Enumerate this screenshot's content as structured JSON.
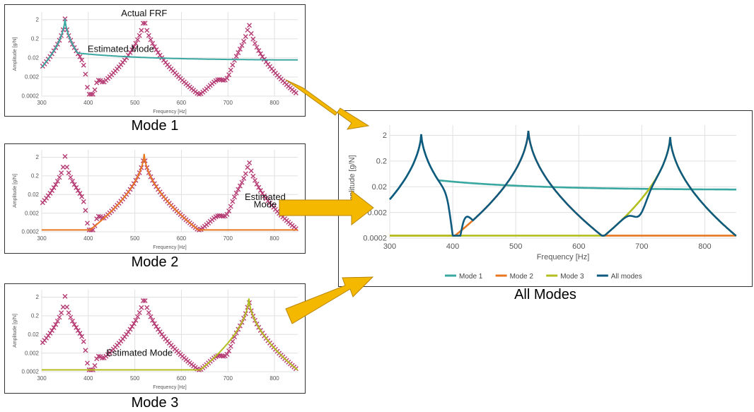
{
  "colors": {
    "mode1": "#3aa8a0",
    "mode2": "#e87722",
    "mode3": "#b3bf1e",
    "all": "#0f5a7f",
    "frf": "#b53a73",
    "arrow": "#f5b800",
    "grid": "#e0e0e0"
  },
  "captions": {
    "mode1": "Mode 1",
    "mode2": "Mode 2",
    "mode3": "Mode 3",
    "all": "All Modes"
  },
  "chart_data": [
    {
      "id": "mode1",
      "type": "line",
      "scale_y": "log",
      "xlabel": "Frequency [Hz]",
      "ylabel": "Amplitude [g/N]",
      "xlim": [
        300,
        850
      ],
      "ylim": [
        0.0002,
        5
      ],
      "x_ticks": [
        "300",
        "400",
        "500",
        "600",
        "700",
        "800"
      ],
      "y_ticks": [
        "0.0002",
        "0.002",
        "0.02",
        "0.2",
        "2"
      ],
      "series": [
        {
          "kind": "markers",
          "color_key": "frf",
          "peaks": [
            [
              350,
              2.2
            ],
            [
              520,
              3.0
            ],
            [
              745,
              1.7
            ]
          ]
        },
        {
          "kind": "line",
          "color_key": "mode1",
          "peak": [
            350,
            2.2
          ],
          "tail": 0.015
        }
      ],
      "annotations": [
        {
          "text": "Actual FRF",
          "at": [
            520,
            3.0
          ]
        },
        {
          "text": "Estimated Mode",
          "at": [
            470,
            0.04
          ]
        }
      ]
    },
    {
      "id": "mode2",
      "type": "line",
      "scale_y": "log",
      "xlabel": "Frequency [Hz]",
      "ylabel": "Amplitude [g/N]",
      "xlim": [
        300,
        850
      ],
      "ylim": [
        0.0002,
        5
      ],
      "x_ticks": [
        "300",
        "400",
        "500",
        "600",
        "700",
        "800"
      ],
      "y_ticks": [
        "0.0002",
        "0.002",
        "0.02",
        "0.2",
        "2"
      ],
      "series": [
        {
          "kind": "markers",
          "color_key": "frf",
          "peaks": [
            [
              350,
              2.2
            ],
            [
              520,
              3.0
            ],
            [
              745,
              1.7
            ]
          ]
        },
        {
          "kind": "line",
          "color_key": "mode2",
          "peak": [
            520,
            3.0
          ]
        }
      ],
      "annotations": [
        {
          "text": "Estimated",
          "at": [
            780,
            0.01
          ]
        },
        {
          "text": "Mode",
          "at": [
            780,
            0.004
          ]
        }
      ]
    },
    {
      "id": "mode3",
      "type": "line",
      "scale_y": "log",
      "xlabel": "Frequency [Hz]",
      "ylabel": "Amplitude [g/N]",
      "xlim": [
        300,
        850
      ],
      "ylim": [
        0.0002,
        5
      ],
      "x_ticks": [
        "300",
        "400",
        "500",
        "600",
        "700",
        "800"
      ],
      "y_ticks": [
        "0.0002",
        "0.002",
        "0.02",
        "0.2",
        "2"
      ],
      "series": [
        {
          "kind": "markers",
          "color_key": "frf",
          "peaks": [
            [
              350,
              2.2
            ],
            [
              520,
              3.0
            ],
            [
              745,
              1.7
            ]
          ]
        },
        {
          "kind": "line",
          "color_key": "mode3",
          "peak": [
            745,
            1.7
          ]
        }
      ],
      "annotations": [
        {
          "text": "Estimated Mode",
          "at": [
            510,
            0.0014
          ]
        }
      ]
    },
    {
      "id": "all",
      "type": "line",
      "scale_y": "log",
      "xlabel": "Frequency [Hz]",
      "ylabel": "Amplitude [g/N]",
      "xlim": [
        300,
        850
      ],
      "ylim": [
        0.0002,
        5
      ],
      "x_ticks": [
        "300",
        "400",
        "500",
        "600",
        "700",
        "800"
      ],
      "y_ticks": [
        "0.0002",
        "0.002",
        "0.02",
        "0.2",
        "2"
      ],
      "legend": "bottom",
      "series": [
        {
          "name": "Mode 1",
          "kind": "line",
          "color_key": "mode1",
          "peak": [
            350,
            2.2
          ],
          "tail": 0.015
        },
        {
          "name": "Mode 2",
          "kind": "line",
          "color_key": "mode2",
          "peak": [
            520,
            3.0
          ]
        },
        {
          "name": "Mode 3",
          "kind": "line",
          "color_key": "mode3",
          "peak": [
            745,
            1.7
          ]
        },
        {
          "name": "All modes",
          "kind": "line",
          "color_key": "all",
          "peaks": [
            [
              350,
              2.2
            ],
            [
              520,
              3.0
            ],
            [
              745,
              1.7
            ]
          ]
        }
      ]
    }
  ]
}
